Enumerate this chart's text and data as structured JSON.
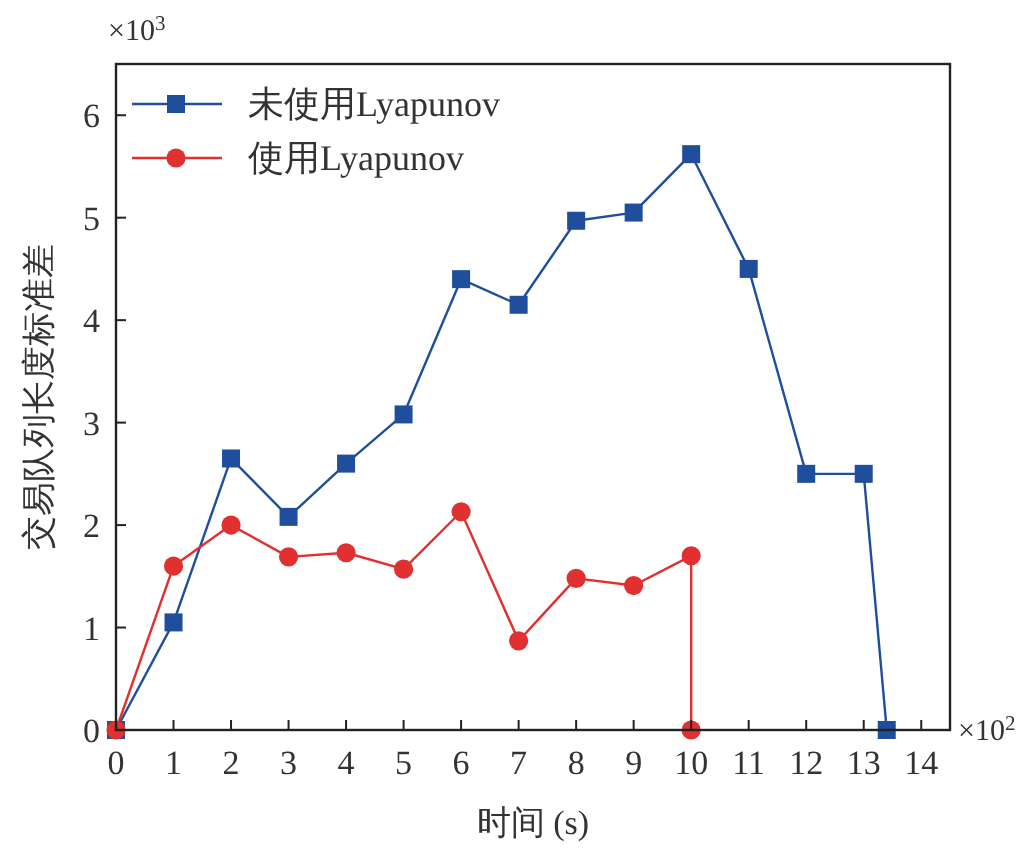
{
  "chart_data": {
    "type": "line",
    "xlabel": "时间 (s)",
    "ylabel": "交易队列长度标准差",
    "annotations": [
      "×10$^{3}$",
      "×10$^{2}$"
    ],
    "xlim": [
      0,
      14.5
    ],
    "xticks": [
      0,
      1,
      2,
      3,
      4,
      5,
      6,
      7,
      8,
      9,
      10,
      11,
      12,
      13,
      14
    ],
    "ylim": [
      0,
      6.5
    ],
    "yticks": [
      0,
      1,
      2,
      3,
      4,
      5,
      6
    ],
    "grid": false,
    "legend": "top left",
    "line_style": "solid",
    "series": [
      {
        "name": "未使用Lyapunov",
        "color": "#1f4e9c",
        "marker": "square",
        "x": [
          0,
          1,
          2,
          3,
          4,
          5,
          6,
          7,
          8,
          9,
          10,
          11,
          12,
          13,
          13.4
        ],
        "values": [
          0,
          1.05,
          2.65,
          2.08,
          2.6,
          3.08,
          4.4,
          4.15,
          4.97,
          5.05,
          5.62,
          4.5,
          2.5,
          2.5,
          0
        ]
      },
      {
        "name": "使用Lyapunov",
        "color": "#e03030",
        "marker": "circle",
        "x": [
          0,
          1,
          2,
          3,
          4,
          5,
          6,
          7,
          8,
          9,
          10,
          10
        ],
        "values": [
          0,
          1.6,
          2.0,
          1.69,
          1.73,
          1.57,
          2.13,
          0.87,
          1.48,
          1.41,
          1.7,
          0
        ]
      }
    ]
  }
}
